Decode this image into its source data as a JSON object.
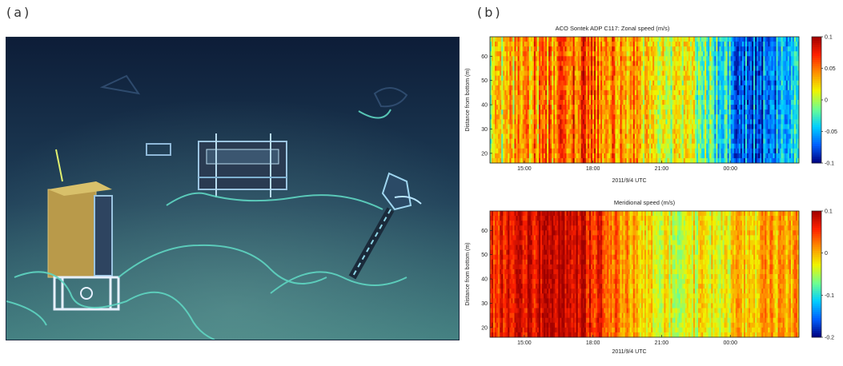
{
  "panels": {
    "a_label": "(a)",
    "b_label": "(b)"
  },
  "photo": {
    "colors": {
      "seafloor_top": "#0d1d38",
      "seafloor_mid": "#1f3f58",
      "seafloor_bottom": "#3f7c7e",
      "cable": "#5fd6c2",
      "instrument": "#9bc4e0"
    }
  },
  "colorbar_colors": [
    "#00007f",
    "#0060ff",
    "#00cfff",
    "#6fff8f",
    "#f0f500",
    "#ff9000",
    "#ff2000",
    "#9f0000"
  ],
  "chart_data": [
    {
      "type": "heatmap",
      "title": "ACO Sontek ADP C117: Zonal speed (m/s)",
      "xlabel": "2011/9/4 UTC",
      "ylabel": "Distance from bottom (m)",
      "x_ticks": [
        "15:00",
        "18:00",
        "21:00",
        "00:00"
      ],
      "y_ticks": [
        20,
        30,
        40,
        50,
        60
      ],
      "ylim": [
        16,
        68
      ],
      "colorbar_ticks": [
        "0.1",
        "0.05",
        "0",
        "-0.05",
        "-0.1"
      ],
      "clim": [
        -0.1,
        0.1
      ],
      "x_hours": [
        13.5,
        14.5,
        15.5,
        16.5,
        17.5,
        18.5,
        19.5,
        20.5,
        21.5,
        22.5,
        23.5,
        24.5,
        25.5,
        26.5
      ],
      "mean_by_hour": [
        0.01,
        0.03,
        0.04,
        0.05,
        0.06,
        0.05,
        0.04,
        0.03,
        0.01,
        0.0,
        -0.03,
        -0.06,
        -0.07,
        -0.05
      ]
    },
    {
      "type": "heatmap",
      "title": "Meridional speed (m/s)",
      "xlabel": "2011/9/4 UTC",
      "ylabel": "Distance from bottom (m)",
      "x_ticks": [
        "15:00",
        "18:00",
        "21:00",
        "00:00"
      ],
      "y_ticks": [
        20,
        30,
        40,
        50,
        60
      ],
      "ylim": [
        16,
        68
      ],
      "colorbar_ticks": [
        "0.1",
        "0",
        "-0.1",
        "-0.2"
      ],
      "clim": [
        -0.2,
        0.1
      ],
      "x_hours": [
        13.5,
        14.5,
        15.5,
        16.5,
        17.5,
        18.5,
        19.5,
        20.5,
        21.5,
        22.5,
        23.5,
        24.5,
        25.5,
        26.5
      ],
      "mean_by_hour": [
        0.05,
        0.07,
        0.08,
        0.09,
        0.08,
        0.05,
        0.01,
        -0.02,
        -0.03,
        -0.03,
        -0.02,
        -0.01,
        0.0,
        0.01
      ]
    }
  ]
}
